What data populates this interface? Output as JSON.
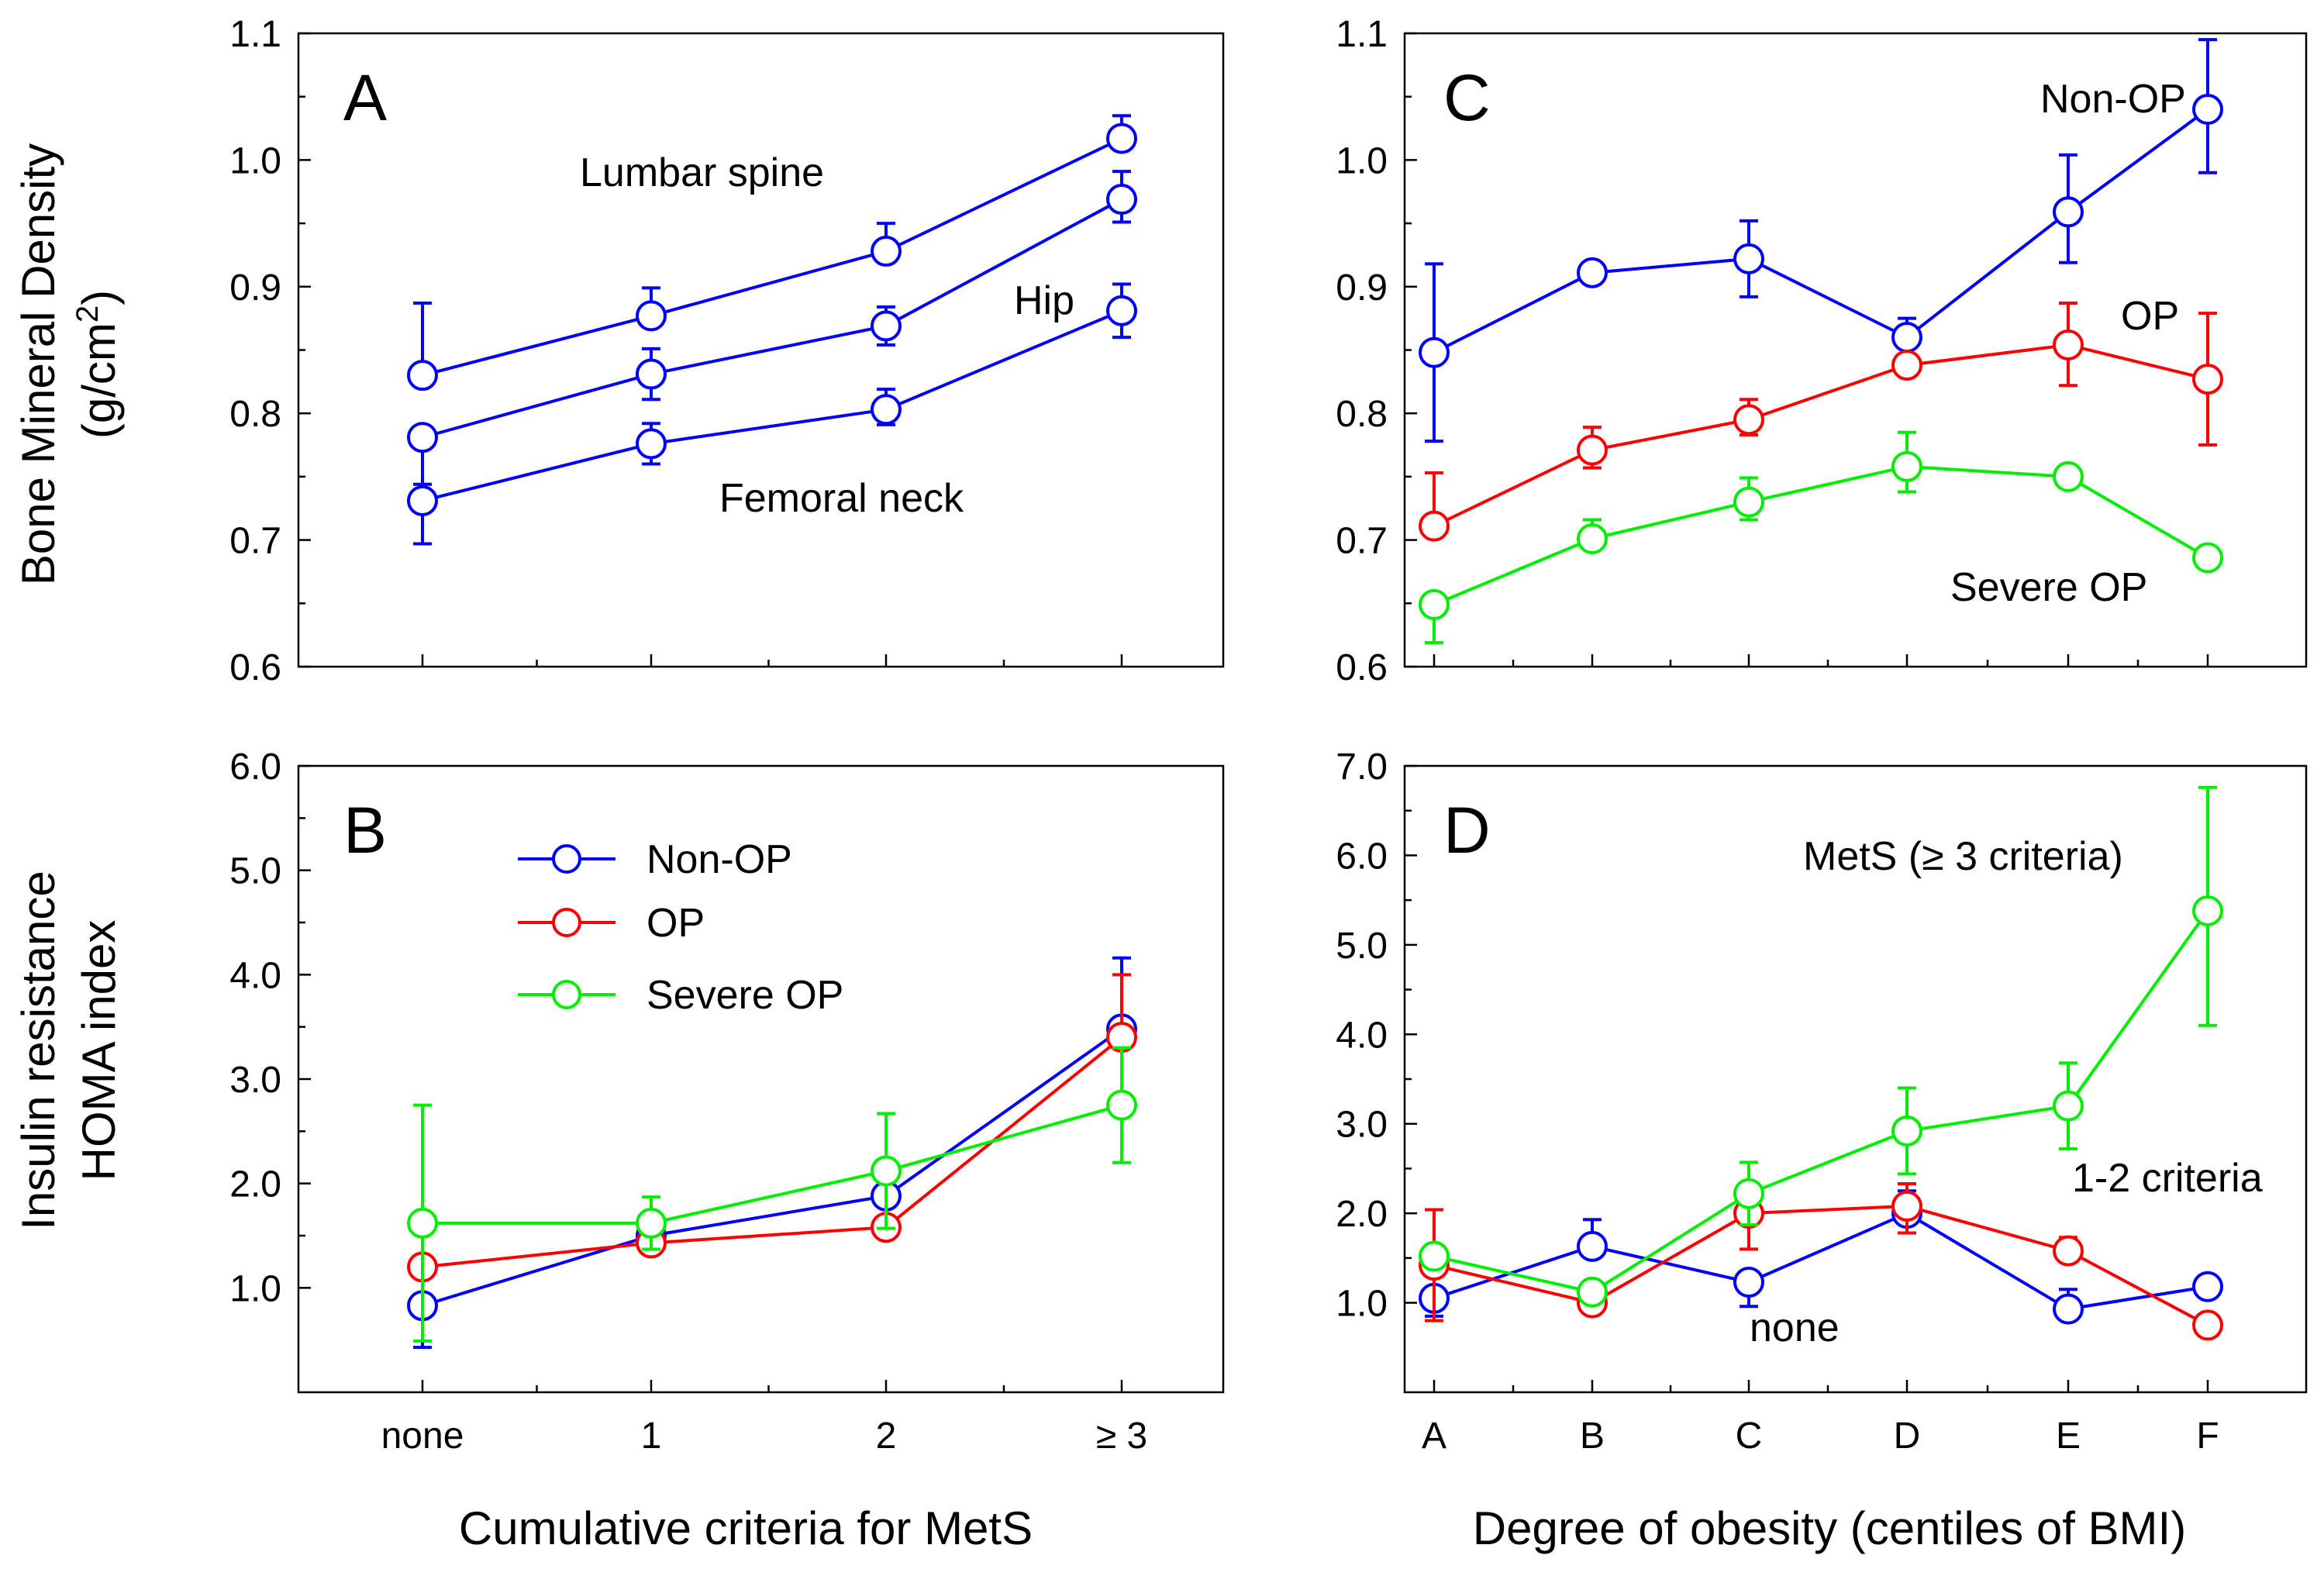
{
  "chart_data": [
    {
      "panel": "A",
      "type": "line",
      "ylabel_line1": "Bone Mineral Density",
      "ylabel_line2": "(g/cm",
      "ylabel_sup": "2",
      "ylabel_close": ")",
      "categories": [
        "none",
        "1",
        "2",
        "≥ 3"
      ],
      "ylim": [
        0.6,
        1.1
      ],
      "yticks": [
        "0.6",
        "0.7",
        "0.8",
        "0.9",
        "1.0",
        "1.1"
      ],
      "yticks_values": [
        0.6,
        0.7,
        0.8,
        0.9,
        1.0,
        1.1
      ],
      "series": [
        {
          "name": "Lumbar spine",
          "color": "#0000ff",
          "values": [
            0.83,
            0.877,
            0.928,
            1.017
          ],
          "err_up": [
            0.057,
            0.022,
            0.022,
            0.018
          ],
          "err_down": [
            0.0,
            0.0,
            0.0,
            0.0
          ]
        },
        {
          "name": "Hip",
          "color": "#0000ff",
          "values": [
            0.781,
            0.831,
            0.869,
            0.969
          ],
          "err_up": [
            0.0,
            0.02,
            0.015,
            0.022
          ],
          "err_down": [
            0.037,
            0.02,
            0.015,
            0.018
          ]
        },
        {
          "name": "Femoral neck",
          "color": "#0000ff",
          "values": [
            0.731,
            0.776,
            0.803,
            0.881
          ],
          "err_up": [
            0.0,
            0.016,
            0.016,
            0.021
          ],
          "err_down": [
            0.034,
            0.016,
            0.012,
            0.021
          ]
        }
      ],
      "annotations": [
        "Lumbar spine",
        "Hip",
        "Femoral neck"
      ]
    },
    {
      "panel": "B",
      "type": "line",
      "ylabel_line1": "Insulin resistance",
      "ylabel_line2": "HOMA index",
      "xlabel": "Cumulative criteria for MetS",
      "categories": [
        "none",
        "1",
        "2",
        "≥ 3"
      ],
      "ylim": [
        0.0,
        6.0
      ],
      "yticks": [
        "1.0",
        "2.0",
        "3.0",
        "4.0",
        "5.0",
        "6.0"
      ],
      "yticks_values": [
        1.0,
        2.0,
        3.0,
        4.0,
        5.0,
        6.0
      ],
      "series": [
        {
          "name": "Non-OP",
          "color": "#0000ff",
          "values": [
            0.83,
            1.5,
            1.88,
            3.48
          ],
          "err_up": [
            0.0,
            0.0,
            0.0,
            0.68
          ],
          "err_down": [
            0.4,
            0.0,
            0.0,
            0.0
          ]
        },
        {
          "name": "OP",
          "color": "#ff0000",
          "values": [
            1.2,
            1.43,
            1.58,
            3.4
          ],
          "err_up": [
            0.0,
            0.0,
            0.0,
            0.6
          ],
          "err_down": [
            0.0,
            0.1,
            0.1,
            0.0
          ]
        },
        {
          "name": "Severe OP",
          "color": "#00ee00",
          "values": [
            1.62,
            1.62,
            2.12,
            2.75
          ],
          "err_up": [
            1.13,
            0.25,
            0.55,
            0.55
          ],
          "err_down": [
            1.13,
            0.25,
            0.55,
            0.55
          ]
        }
      ],
      "legend": [
        "Non-OP",
        "OP",
        "Severe OP"
      ]
    },
    {
      "panel": "C",
      "type": "line",
      "categories": [
        "A",
        "B",
        "C",
        "D",
        "E",
        "F"
      ],
      "ylim": [
        0.6,
        1.1
      ],
      "yticks": [
        "0.6",
        "0.7",
        "0.8",
        "0.9",
        "1.0",
        "1.1"
      ],
      "yticks_values": [
        0.6,
        0.7,
        0.8,
        0.9,
        1.0,
        1.1
      ],
      "series": [
        {
          "name": "Non-OP",
          "color": "#0000ff",
          "values": [
            0.848,
            0.911,
            0.922,
            0.86,
            0.959,
            1.04
          ],
          "err_up": [
            0.07,
            0.0,
            0.03,
            0.015,
            0.045,
            0.055
          ],
          "err_down": [
            0.07,
            0.0,
            0.03,
            0.0,
            0.04,
            0.05
          ]
        },
        {
          "name": "OP",
          "color": "#ff0000",
          "values": [
            0.711,
            0.771,
            0.795,
            0.838,
            0.854,
            0.827
          ],
          "err_up": [
            0.042,
            0.018,
            0.016,
            0.0,
            0.033,
            0.052
          ],
          "err_down": [
            0.0,
            0.014,
            0.012,
            0.0,
            0.032,
            0.052
          ]
        },
        {
          "name": "Severe OP",
          "color": "#00ee00",
          "values": [
            0.649,
            0.701,
            0.73,
            0.758,
            0.75,
            0.686
          ],
          "err_up": [
            0.0,
            0.015,
            0.019,
            0.027,
            0.0,
            0.0
          ],
          "err_down": [
            0.03,
            0.0,
            0.014,
            0.02,
            0.0,
            0.0
          ]
        }
      ],
      "annotations": [
        "Non-OP",
        "OP",
        "Severe OP"
      ]
    },
    {
      "panel": "D",
      "type": "line",
      "xlabel": "Degree of obesity (centiles of BMI)",
      "categories": [
        "A",
        "B",
        "C",
        "D",
        "E",
        "F"
      ],
      "ylim": [
        0.0,
        7.0
      ],
      "yticks": [
        "1.0",
        "2.0",
        "3.0",
        "4.0",
        "5.0",
        "6.0",
        "7.0"
      ],
      "yticks_values": [
        1.0,
        2.0,
        3.0,
        4.0,
        5.0,
        6.0,
        7.0
      ],
      "series": [
        {
          "name": "none",
          "color": "#0000ff",
          "values": [
            1.05,
            1.63,
            1.23,
            2.0,
            0.93,
            1.18
          ],
          "err_up": [
            0.0,
            0.3,
            0.0,
            0.25,
            0.22,
            0.0
          ],
          "err_down": [
            0.2,
            0.0,
            0.27,
            0.0,
            0.0,
            0.0
          ]
        },
        {
          "name": "1-2 criteria",
          "color": "#ff0000",
          "values": [
            1.42,
            1.0,
            2.0,
            2.08,
            1.58,
            0.75
          ],
          "err_up": [
            0.62,
            0.0,
            0.0,
            0.25,
            0.15,
            0.0
          ],
          "err_down": [
            0.62,
            0.0,
            0.4,
            0.3,
            0.0,
            0.0
          ]
        },
        {
          "name": "MetS (≥ 3 criteria)",
          "color": "#00ee00",
          "values": [
            1.52,
            1.12,
            2.22,
            2.92,
            3.2,
            5.38
          ],
          "err_up": [
            0.0,
            0.0,
            0.35,
            0.48,
            0.48,
            1.38
          ],
          "err_down": [
            0.0,
            0.0,
            0.35,
            0.48,
            0.48,
            1.28
          ]
        }
      ],
      "annotations": [
        "MetS (≥ 3 criteria)",
        "1-2 criteria",
        "none"
      ]
    }
  ]
}
